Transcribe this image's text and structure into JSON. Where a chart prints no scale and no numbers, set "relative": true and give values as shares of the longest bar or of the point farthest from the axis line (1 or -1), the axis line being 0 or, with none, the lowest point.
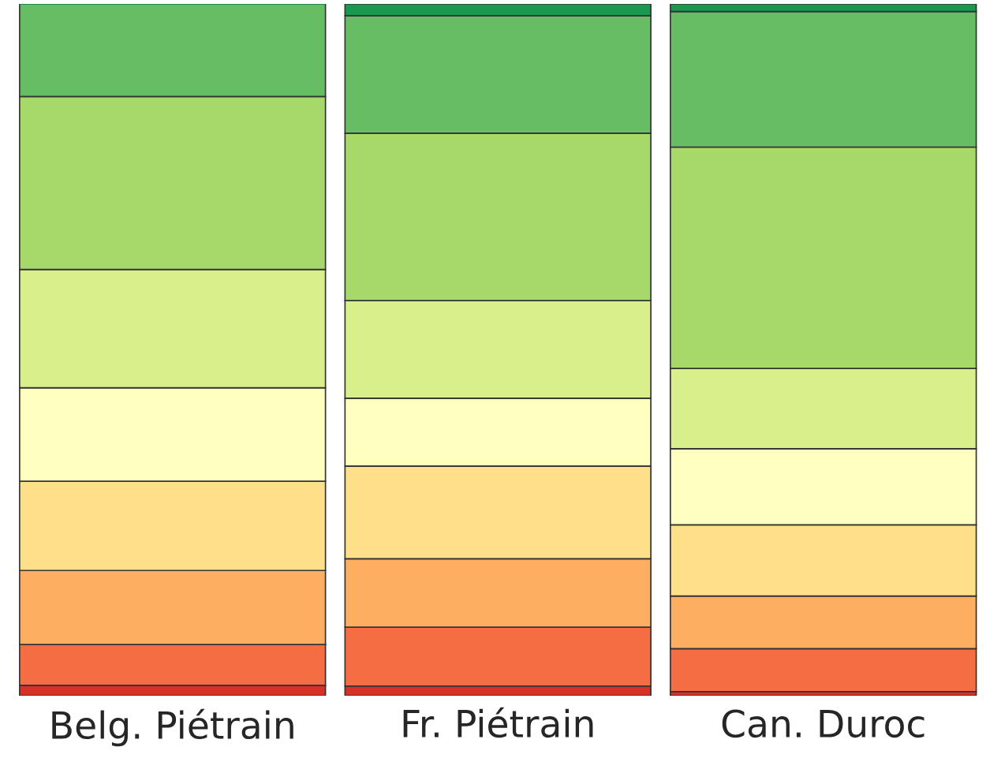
{
  "chart_data": {
    "type": "bar",
    "stacked": true,
    "relative": true,
    "categories": [
      "Belg. Piétrain",
      "Fr. Piétrain",
      "Can. Duroc"
    ],
    "series": [
      {
        "color": "#d73027",
        "values": [
          0.015,
          0.014,
          0.006
        ]
      },
      {
        "color": "#f46d43",
        "values": [
          0.059,
          0.085,
          0.062
        ]
      },
      {
        "color": "#fdae61",
        "values": [
          0.107,
          0.099,
          0.076
        ]
      },
      {
        "color": "#fee08b",
        "values": [
          0.129,
          0.134,
          0.103
        ]
      },
      {
        "color": "#ffffbf",
        "values": [
          0.135,
          0.098,
          0.11
        ]
      },
      {
        "color": "#d9ef8b",
        "values": [
          0.171,
          0.141,
          0.116
        ]
      },
      {
        "color": "#a6d96a",
        "values": [
          0.25,
          0.242,
          0.32
        ]
      },
      {
        "color": "#66bd63",
        "values": [
          0.134,
          0.17,
          0.196
        ]
      },
      {
        "color": "#1a9850",
        "values": [
          0,
          0.017,
          0.011
        ]
      }
    ]
  }
}
